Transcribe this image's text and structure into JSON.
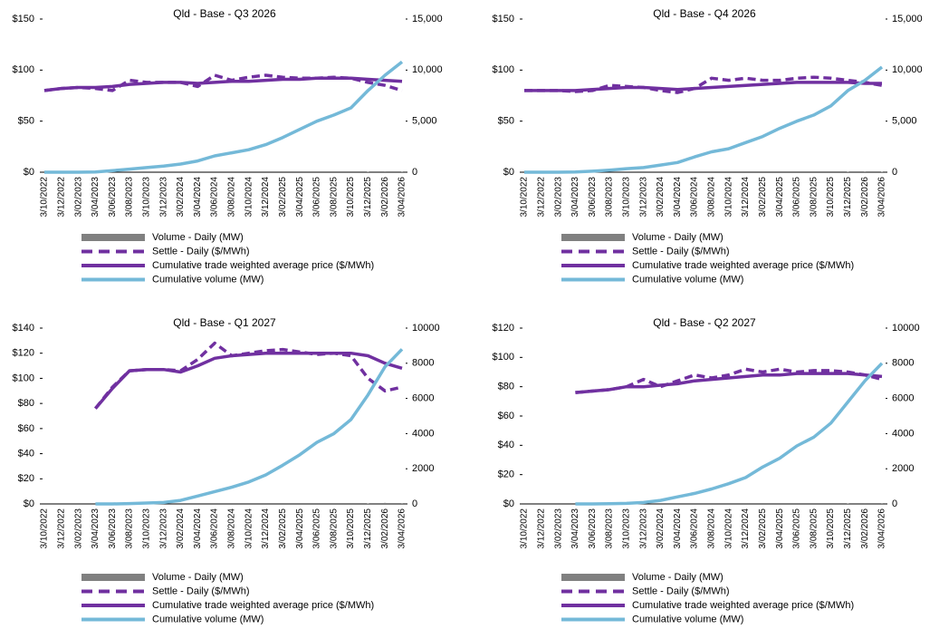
{
  "chart_data": [
    {
      "type": "line",
      "title": "Qld - Base - Q3 2026",
      "categories": [
        "3/10/2022",
        "3/12/2022",
        "3/02/2023",
        "3/04/2023",
        "3/06/2023",
        "3/08/2023",
        "3/10/2023",
        "3/12/2023",
        "3/02/2024",
        "3/04/2024",
        "3/06/2024",
        "3/08/2024",
        "3/10/2024",
        "3/12/2024",
        "3/02/2025",
        "3/04/2025",
        "3/06/2025",
        "3/08/2025",
        "3/10/2025",
        "3/12/2025",
        "3/02/2026",
        "3/04/2026"
      ],
      "ylim": [
        0,
        150
      ],
      "yticks": [
        {
          "value": 0,
          "label": "$0"
        },
        {
          "value": 50,
          "label": "$50"
        },
        {
          "value": 100,
          "label": "$100"
        },
        {
          "value": 150,
          "label": "$150"
        }
      ],
      "y2lim": [
        0,
        15000
      ],
      "y2ticks": [
        0,
        {
          "value": 5000,
          "label": "5,000"
        },
        {
          "value": 10000,
          "label": "10,000"
        },
        {
          "value": 15000,
          "label": "15,000"
        }
      ],
      "series": [
        {
          "name": "Volume - Daily (MW)",
          "type": "bar",
          "color": "#808080",
          "axis": "y2",
          "values": [
            null,
            null,
            null,
            null,
            null,
            null,
            null,
            null,
            null,
            null,
            null,
            null,
            null,
            null,
            null,
            null,
            null,
            null,
            null,
            40,
            80,
            60
          ]
        },
        {
          "name": "Settle - Daily ($/MWh)",
          "type": "line",
          "dash": true,
          "color": "#7030a0",
          "values": [
            80,
            82,
            83,
            82,
            80,
            90,
            88,
            88,
            88,
            84,
            95,
            90,
            93,
            95,
            93,
            92,
            92,
            93,
            92,
            88,
            85,
            80
          ]
        },
        {
          "name": "Cumulative trade weighted average price ($/MWh)",
          "type": "line",
          "color": "#7030a0",
          "values": [
            80,
            82,
            83,
            83,
            84,
            86,
            87,
            88,
            88,
            87,
            88,
            89,
            89,
            90,
            91,
            91,
            92,
            92,
            92,
            91,
            90,
            89
          ]
        },
        {
          "name": "Cumulative volume (MW)",
          "type": "line",
          "color": "#74b9d8",
          "axis": "y2",
          "values": [
            0,
            0,
            0,
            20,
            150,
            300,
            450,
            600,
            800,
            1100,
            1600,
            1900,
            2200,
            2700,
            3400,
            4200,
            5000,
            5600,
            6300,
            8000,
            9500,
            10800
          ]
        }
      ]
    },
    {
      "type": "line",
      "title": "Qld - Base - Q4 2026",
      "categories": [
        "3/10/2022",
        "3/12/2022",
        "3/02/2023",
        "3/04/2023",
        "3/06/2023",
        "3/08/2023",
        "3/10/2023",
        "3/12/2023",
        "3/02/2024",
        "3/04/2024",
        "3/06/2024",
        "3/08/2024",
        "3/10/2024",
        "3/12/2024",
        "3/02/2025",
        "3/04/2025",
        "3/06/2025",
        "3/08/2025",
        "3/10/2025",
        "3/12/2025",
        "3/02/2026",
        "3/04/2026"
      ],
      "ylim": [
        0,
        150
      ],
      "yticks": [
        {
          "value": 0,
          "label": "$0"
        },
        {
          "value": 50,
          "label": "$50"
        },
        {
          "value": 100,
          "label": "$100"
        },
        {
          "value": 150,
          "label": "$150"
        }
      ],
      "y2lim": [
        0,
        15000
      ],
      "y2ticks": [
        0,
        {
          "value": 5000,
          "label": "5,000"
        },
        {
          "value": 10000,
          "label": "10,000"
        },
        {
          "value": 15000,
          "label": "15,000"
        }
      ],
      "series": [
        {
          "name": "Volume - Daily (MW)",
          "type": "bar",
          "color": "#808080",
          "axis": "y2",
          "values": [
            null,
            null,
            null,
            null,
            null,
            null,
            null,
            null,
            null,
            null,
            null,
            null,
            null,
            null,
            null,
            null,
            null,
            null,
            null,
            40,
            70,
            50
          ]
        },
        {
          "name": "Settle - Daily ($/MWh)",
          "type": "line",
          "dash": true,
          "color": "#7030a0",
          "values": [
            80,
            80,
            80,
            79,
            80,
            85,
            84,
            83,
            80,
            78,
            82,
            92,
            90,
            92,
            90,
            90,
            92,
            93,
            92,
            90,
            88,
            85
          ]
        },
        {
          "name": "Cumulative trade weighted average price ($/MWh)",
          "type": "line",
          "color": "#7030a0",
          "values": [
            80,
            80,
            80,
            80,
            81,
            82,
            83,
            83,
            82,
            81,
            82,
            83,
            84,
            85,
            86,
            87,
            88,
            88,
            88,
            88,
            87,
            87
          ]
        },
        {
          "name": "Cumulative volume (MW)",
          "type": "line",
          "color": "#74b9d8",
          "axis": "y2",
          "values": [
            0,
            0,
            0,
            30,
            100,
            200,
            350,
            450,
            700,
            950,
            1500,
            2000,
            2300,
            2900,
            3500,
            4300,
            5000,
            5600,
            6500,
            8000,
            9000,
            10300
          ]
        }
      ]
    },
    {
      "type": "line",
      "title": "Qld - Base - Q1 2027",
      "categories": [
        "3/10/2022",
        "3/12/2022",
        "3/02/2023",
        "3/04/2023",
        "3/06/2023",
        "3/08/2023",
        "3/10/2023",
        "3/12/2023",
        "3/02/2024",
        "3/04/2024",
        "3/06/2024",
        "3/08/2024",
        "3/10/2024",
        "3/12/2024",
        "3/02/2025",
        "3/04/2025",
        "3/06/2025",
        "3/08/2025",
        "3/10/2025",
        "3/12/2025",
        "3/02/2026",
        "3/04/2026"
      ],
      "ylim": [
        0,
        140
      ],
      "yticks": [
        {
          "value": 0,
          "label": "$0"
        },
        {
          "value": 20,
          "label": "$20"
        },
        {
          "value": 40,
          "label": "$40"
        },
        {
          "value": 60,
          "label": "$60"
        },
        {
          "value": 80,
          "label": "$80"
        },
        {
          "value": 100,
          "label": "$100"
        },
        {
          "value": 120,
          "label": "$120"
        },
        {
          "value": 140,
          "label": "$140"
        }
      ],
      "y2lim": [
        0,
        10000
      ],
      "y2ticks": [
        0,
        2000,
        4000,
        6000,
        8000,
        10000
      ],
      "series": [
        {
          "name": "Volume - Daily (MW)",
          "type": "bar",
          "color": "#808080",
          "axis": "y2",
          "values": [
            null,
            null,
            null,
            null,
            null,
            null,
            null,
            null,
            null,
            null,
            null,
            null,
            null,
            null,
            null,
            null,
            null,
            null,
            null,
            30,
            60,
            40
          ]
        },
        {
          "name": "Settle - Daily ($/MWh)",
          "type": "line",
          "dash": true,
          "color": "#7030a0",
          "values": [
            null,
            null,
            null,
            76,
            93,
            106,
            107,
            107,
            106,
            115,
            128,
            118,
            120,
            122,
            123,
            121,
            119,
            120,
            118,
            100,
            90,
            93
          ]
        },
        {
          "name": "Cumulative trade weighted average price ($/MWh)",
          "type": "line",
          "color": "#7030a0",
          "values": [
            null,
            null,
            null,
            76,
            92,
            106,
            107,
            107,
            105,
            110,
            116,
            118,
            119,
            120,
            120,
            120,
            120,
            120,
            120,
            118,
            112,
            108
          ]
        },
        {
          "name": "Cumulative volume (MW)",
          "type": "line",
          "color": "#74b9d8",
          "axis": "y2",
          "values": [
            null,
            null,
            null,
            0,
            0,
            20,
            50,
            80,
            200,
            450,
            700,
            950,
            1250,
            1650,
            2200,
            2800,
            3500,
            4000,
            4800,
            6200,
            7800,
            8800
          ]
        }
      ]
    },
    {
      "type": "line",
      "title": "Qld - Base - Q2 2027",
      "categories": [
        "3/10/2022",
        "3/12/2022",
        "3/02/2023",
        "3/04/2023",
        "3/06/2023",
        "3/08/2023",
        "3/10/2023",
        "3/12/2023",
        "3/02/2024",
        "3/04/2024",
        "3/06/2024",
        "3/08/2024",
        "3/10/2024",
        "3/12/2024",
        "3/02/2025",
        "3/04/2025",
        "3/06/2025",
        "3/08/2025",
        "3/10/2025",
        "3/12/2025",
        "3/02/2026",
        "3/04/2026"
      ],
      "ylim": [
        0,
        120
      ],
      "yticks": [
        {
          "value": 0,
          "label": "$0"
        },
        {
          "value": 20,
          "label": "$20"
        },
        {
          "value": 40,
          "label": "$40"
        },
        {
          "value": 60,
          "label": "$60"
        },
        {
          "value": 80,
          "label": "$80"
        },
        {
          "value": 100,
          "label": "$100"
        },
        {
          "value": 120,
          "label": "$120"
        }
      ],
      "y2lim": [
        0,
        10000
      ],
      "y2ticks": [
        0,
        2000,
        4000,
        6000,
        8000,
        10000
      ],
      "series": [
        {
          "name": "Volume - Daily (MW)",
          "type": "bar",
          "color": "#808080",
          "axis": "y2",
          "values": [
            null,
            null,
            null,
            null,
            null,
            null,
            null,
            null,
            null,
            null,
            null,
            null,
            null,
            null,
            null,
            null,
            null,
            null,
            null,
            30,
            50,
            40
          ]
        },
        {
          "name": "Settle - Daily ($/MWh)",
          "type": "line",
          "dash": true,
          "color": "#7030a0",
          "values": [
            null,
            null,
            null,
            76,
            77,
            78,
            80,
            85,
            80,
            84,
            88,
            86,
            88,
            92,
            90,
            92,
            90,
            91,
            91,
            90,
            88,
            85
          ]
        },
        {
          "name": "Cumulative trade weighted average price ($/MWh)",
          "type": "line",
          "color": "#7030a0",
          "values": [
            null,
            null,
            null,
            76,
            77,
            78,
            80,
            80,
            81,
            82,
            84,
            85,
            86,
            87,
            88,
            88,
            89,
            89,
            89,
            89,
            88,
            87
          ]
        },
        {
          "name": "Cumulative volume (MW)",
          "type": "line",
          "color": "#74b9d8",
          "axis": "y2",
          "values": [
            null,
            null,
            null,
            0,
            0,
            10,
            30,
            80,
            200,
            400,
            600,
            850,
            1150,
            1500,
            2100,
            2600,
            3300,
            3800,
            4600,
            5800,
            7000,
            8000
          ]
        }
      ]
    }
  ]
}
